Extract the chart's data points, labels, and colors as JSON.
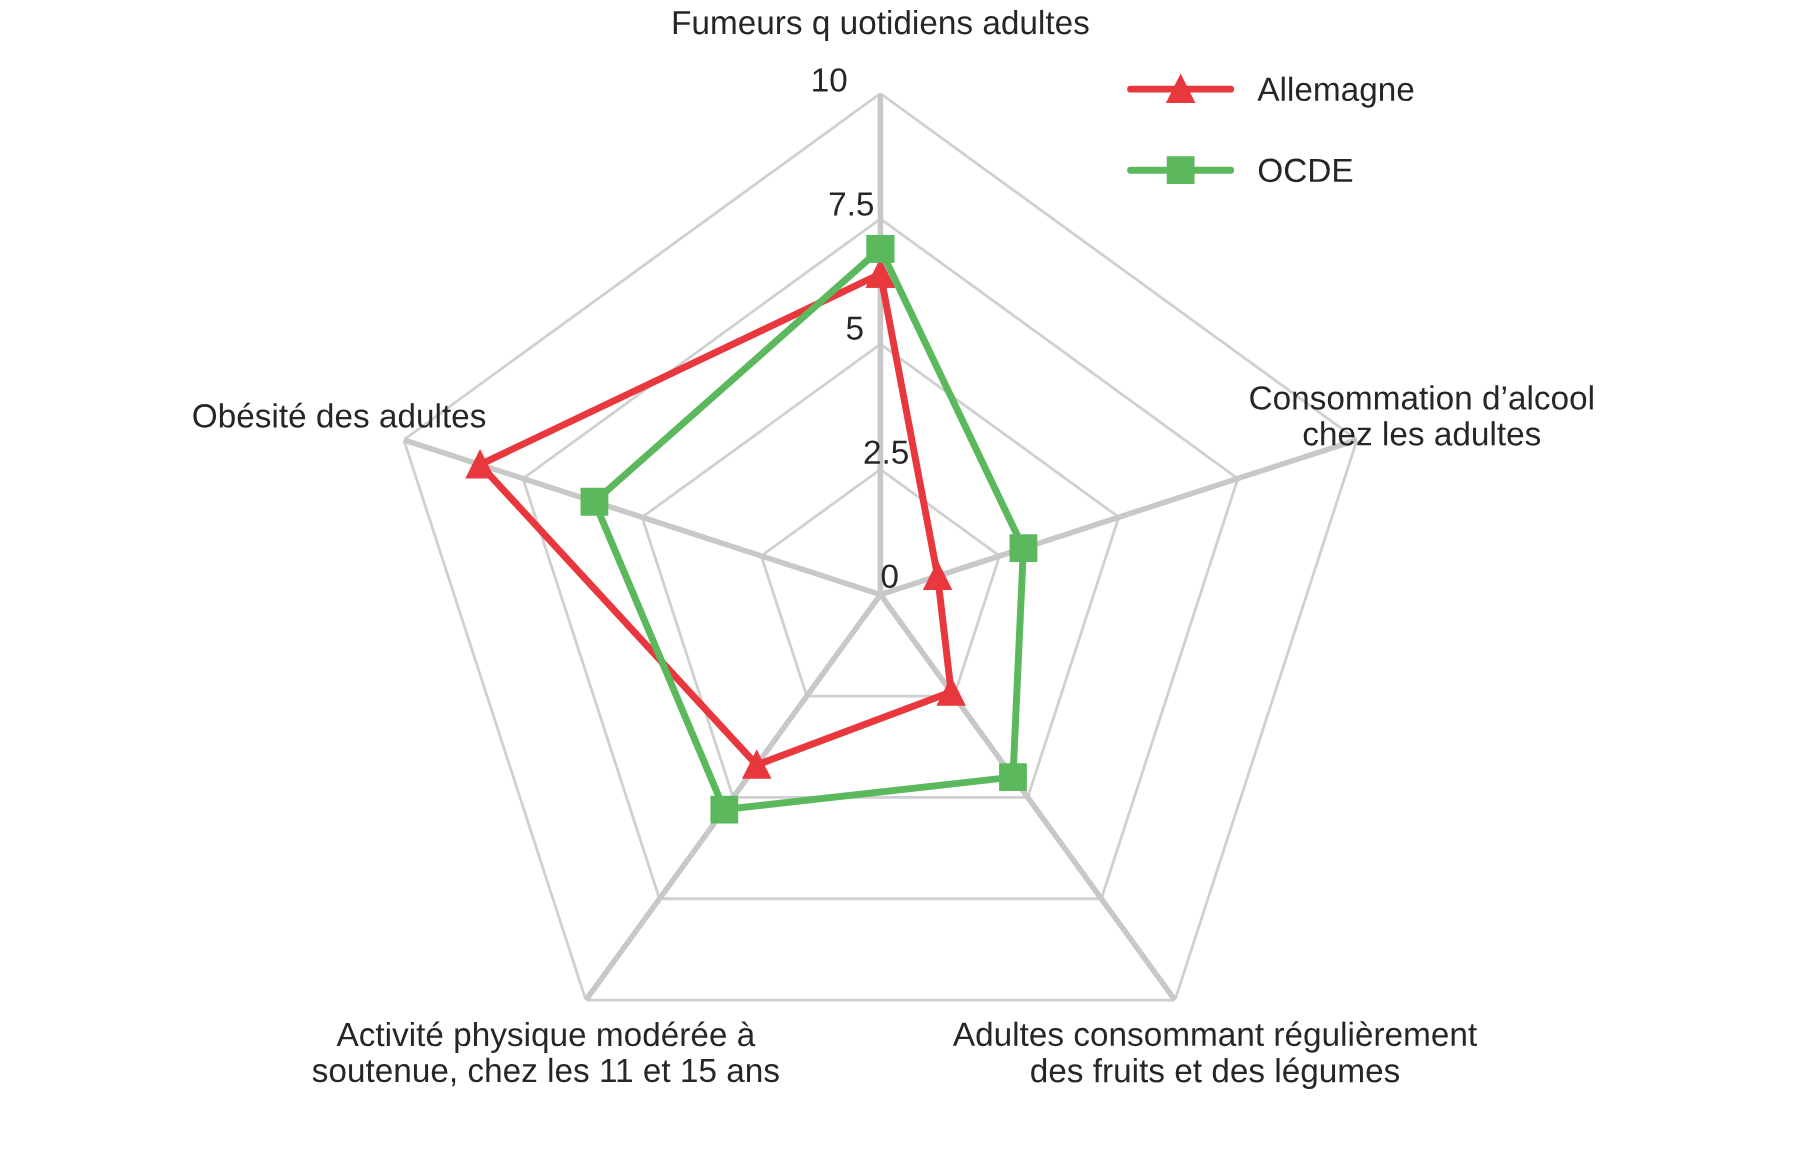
{
  "chart_data": {
    "type": "radar",
    "categories": [
      "Fumeurs q uotidiens adultes",
      "Consommation d’alcool\nchez les adultes",
      "Adultes consommant régulièrement\ndes fruits et des légumes",
      "Activité physique modérée à\nsoutenue, chez les 11 et 15 ans",
      "Obésité des adultes"
    ],
    "series": [
      {
        "name": "Allemagne",
        "color": "#e8383d",
        "marker": "triangle",
        "values": [
          6.4,
          1.2,
          2.4,
          4.2,
          8.4
        ]
      },
      {
        "name": "OCDE",
        "color": "#5cb85c",
        "marker": "square",
        "values": [
          6.9,
          3.0,
          4.5,
          5.3,
          6.0
        ]
      }
    ],
    "ylim": [
      0,
      10
    ],
    "yticks": [
      0,
      2.5,
      5,
      7.5,
      10
    ],
    "grid": true,
    "legend": "top right"
  }
}
